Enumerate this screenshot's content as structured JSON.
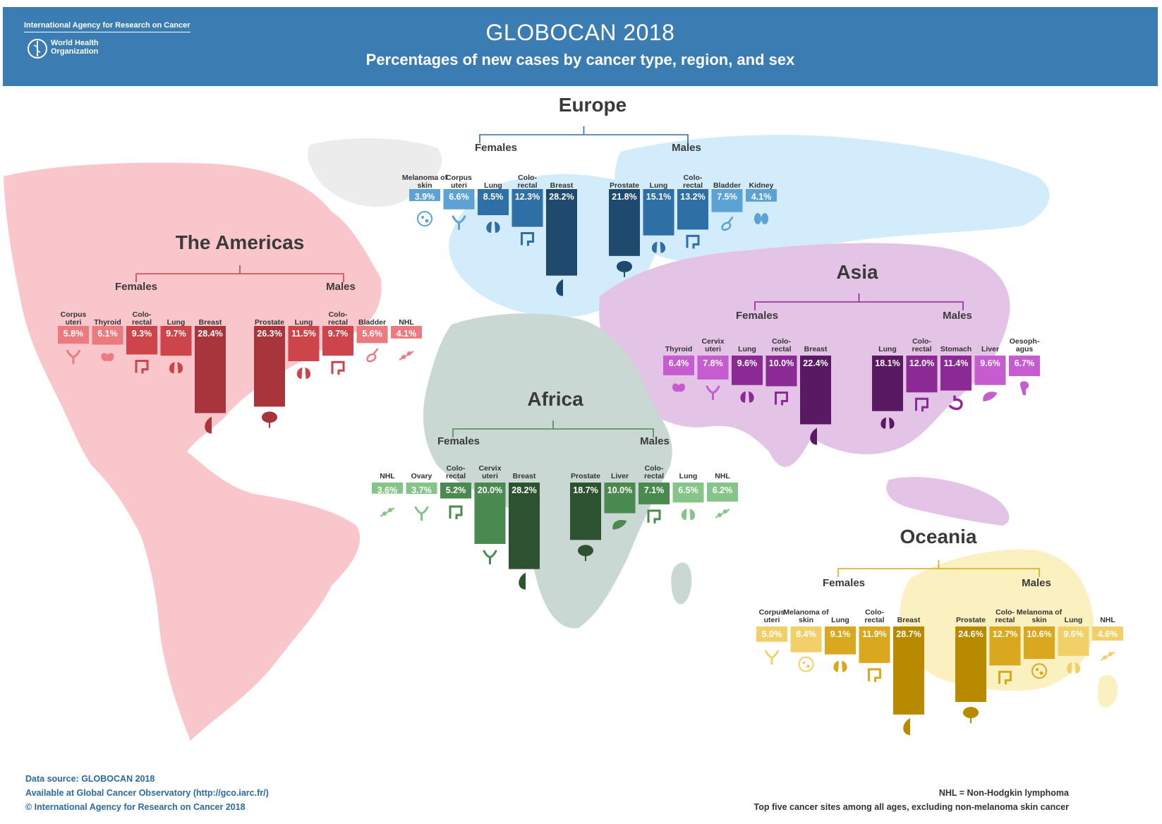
{
  "header": {
    "org_iarc": "International Agency for Research on Cancer",
    "org_who": "World Health Organization",
    "title": "GLOBOCAN 2018",
    "subtitle": "Percentages of new cases by cancer type, region, and sex"
  },
  "footer": {
    "source": "Data source: GLOBOCAN 2018",
    "available": "Available at Global Cancer Observatory (http://gco.iarc.fr/)",
    "copyright": "© International Agency for Research on Cancer 2018",
    "nhl_note": "NHL = Non-Hodgkin lymphoma",
    "top5_note": "Top five cancer sites among all ages, excluding non-melanoma skin cancer"
  },
  "chart_data": [
    {
      "type": "bar",
      "region": "Europe",
      "colors": {
        "dark": "#1f4a6e",
        "mid": "#2e6fa6",
        "light": "#5da2d5",
        "map": "#d3ecfb"
      },
      "females": {
        "label": "Females",
        "categories": [
          "Melanoma of skin",
          "Corpus uteri",
          "Lung",
          "Colo-rectal",
          "Breast"
        ],
        "values": [
          3.9,
          6.6,
          8.5,
          12.3,
          28.2
        ],
        "icons": [
          "skin-icon",
          "uterus-icon",
          "lung-icon",
          "colon-icon",
          "breast-icon"
        ]
      },
      "males": {
        "label": "Males",
        "categories": [
          "Prostate",
          "Lung",
          "Colo-rectal",
          "Bladder",
          "Kidney"
        ],
        "values": [
          21.8,
          15.1,
          13.2,
          7.5,
          4.1
        ],
        "icons": [
          "prostate-icon",
          "lung-icon",
          "colon-icon",
          "bladder-icon",
          "kidney-icon"
        ]
      }
    },
    {
      "type": "bar",
      "region": "The Americas",
      "colors": {
        "dark": "#a8343c",
        "mid": "#cd444a",
        "light": "#ec7b80",
        "map": "#f8c6cb"
      },
      "females": {
        "label": "Females",
        "categories": [
          "Corpus uteri",
          "Thyroid",
          "Colo-rectal",
          "Lung",
          "Breast"
        ],
        "values": [
          5.8,
          6.1,
          9.3,
          9.7,
          28.4
        ],
        "icons": [
          "uterus-icon",
          "thyroid-icon",
          "colon-icon",
          "lung-icon",
          "breast-icon"
        ]
      },
      "males": {
        "label": "Males",
        "categories": [
          "Prostate",
          "Lung",
          "Colo-rectal",
          "Bladder",
          "NHL"
        ],
        "values": [
          26.3,
          11.5,
          9.7,
          5.6,
          4.1
        ],
        "icons": [
          "prostate-icon",
          "lung-icon",
          "colon-icon",
          "bladder-icon",
          "lymph-icon"
        ]
      }
    },
    {
      "type": "bar",
      "region": "Asia",
      "colors": {
        "dark": "#5a1a63",
        "mid": "#8b2a94",
        "light": "#c65ccf",
        "map": "#e3c3e6"
      },
      "females": {
        "label": "Females",
        "categories": [
          "Thyroid",
          "Cervix uteri",
          "Lung",
          "Colo-rectal",
          "Breast"
        ],
        "values": [
          6.4,
          7.8,
          9.6,
          10.0,
          22.4
        ],
        "icons": [
          "thyroid-icon",
          "uterus-icon",
          "lung-icon",
          "colon-icon",
          "breast-icon"
        ]
      },
      "males": {
        "label": "Males",
        "categories": [
          "Lung",
          "Colo-rectal",
          "Stomach",
          "Liver",
          "Oesoph-agus"
        ],
        "values": [
          18.1,
          12.0,
          11.4,
          9.6,
          6.7
        ],
        "icons": [
          "lung-icon",
          "colon-icon",
          "stomach-icon",
          "liver-icon",
          "oesophagus-icon"
        ]
      }
    },
    {
      "type": "bar",
      "region": "Africa",
      "colors": {
        "dark": "#2c5230",
        "mid": "#4a8a50",
        "light": "#86c489",
        "map": "#c9d8d3"
      },
      "females": {
        "label": "Females",
        "categories": [
          "NHL",
          "Ovary",
          "Colo-rectal",
          "Cervix uteri",
          "Breast"
        ],
        "values": [
          3.6,
          3.7,
          5.2,
          20.0,
          28.2
        ],
        "icons": [
          "lymph-icon",
          "uterus-icon",
          "colon-icon",
          "uterus-icon",
          "breast-icon"
        ]
      },
      "males": {
        "label": "Males",
        "categories": [
          "Prostate",
          "Liver",
          "Colo-rectal",
          "Lung",
          "NHL"
        ],
        "values": [
          18.7,
          10.0,
          7.1,
          6.5,
          6.2
        ],
        "icons": [
          "prostate-icon",
          "liver-icon",
          "colon-icon",
          "lung-icon",
          "lymph-icon"
        ]
      }
    },
    {
      "type": "bar",
      "region": "Oceania",
      "colors": {
        "dark": "#b88a00",
        "mid": "#d9a81e",
        "light": "#f2d069",
        "map": "#fbf0c0"
      },
      "females": {
        "label": "Females",
        "categories": [
          "Corpus uteri",
          "Melanoma of skin",
          "Lung",
          "Colo-rectal",
          "Breast"
        ],
        "values": [
          5.0,
          8.4,
          9.1,
          11.9,
          28.7
        ],
        "icons": [
          "uterus-icon",
          "skin-icon",
          "lung-icon",
          "colon-icon",
          "breast-icon"
        ]
      },
      "males": {
        "label": "Males",
        "categories": [
          "Prostate",
          "Colo-rectal",
          "Melanoma of skin",
          "Lung",
          "NHL"
        ],
        "values": [
          24.6,
          12.7,
          10.6,
          9.6,
          4.6
        ],
        "icons": [
          "prostate-icon",
          "colon-icon",
          "skin-icon",
          "lung-icon",
          "lymph-icon"
        ]
      }
    }
  ]
}
